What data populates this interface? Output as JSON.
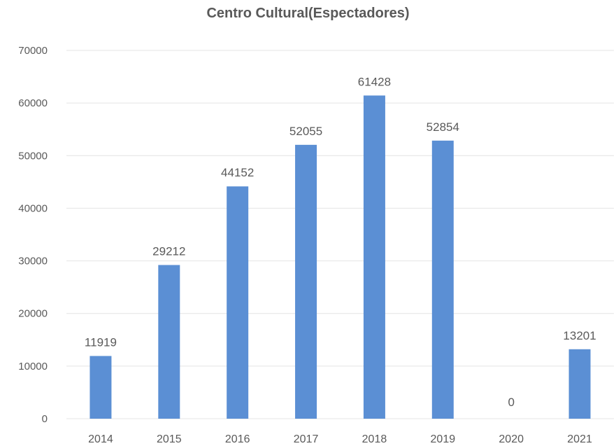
{
  "chart_data": {
    "type": "bar",
    "title": "Centro Cultural(Espectadores)",
    "xlabel": "",
    "ylabel": "",
    "categories": [
      "2014",
      "2015",
      "2016",
      "2017",
      "2018",
      "2019",
      "2020",
      "2021"
    ],
    "values": [
      11919,
      29212,
      44152,
      52055,
      61428,
      52854,
      0,
      13201
    ],
    "data_labels": [
      "11919",
      "29212",
      "44152",
      "52055",
      "61428",
      "52854",
      "0",
      "13201"
    ],
    "ylim": [
      0,
      70000
    ],
    "yticks": [
      "0",
      "10000",
      "20000",
      "30000",
      "40000",
      "50000",
      "60000",
      "70000"
    ],
    "grid": true,
    "legend": "none",
    "bar_color": "#5B8FD4",
    "gridline_color": "#E4E4E4",
    "text_color": "#595959"
  }
}
